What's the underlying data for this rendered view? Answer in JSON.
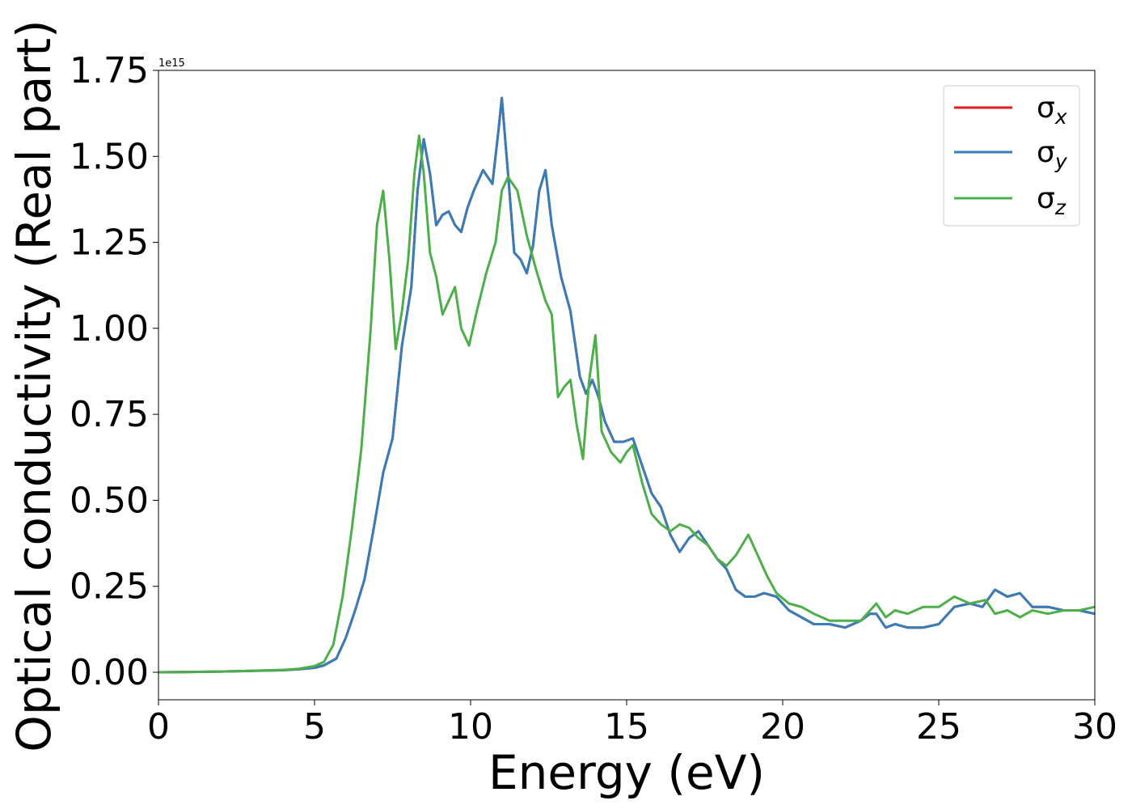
{
  "chart_data": {
    "type": "line",
    "xlabel": "Energy (eV)",
    "ylabel": "Optical conductivity (Real part)",
    "y_multiplier_label": "1e15",
    "xlim": [
      0,
      30
    ],
    "ylim": [
      -0.08,
      1.75
    ],
    "x_ticks": [
      "0",
      "5",
      "10",
      "15",
      "20",
      "25",
      "30"
    ],
    "x_tick_values": [
      0,
      5,
      10,
      15,
      20,
      25,
      30
    ],
    "y_ticks": [
      "0.00",
      "0.25",
      "0.50",
      "0.75",
      "1.00",
      "1.25",
      "1.50",
      "1.75"
    ],
    "y_tick_values": [
      0,
      0.25,
      0.5,
      0.75,
      1.0,
      1.25,
      1.5,
      1.75
    ],
    "legend_position": "top-right",
    "grid": false,
    "series": [
      {
        "name": "σx",
        "legend_base": "σ",
        "legend_sub": "x",
        "color": "#e41a1c",
        "x": [
          0,
          1,
          2,
          3,
          4,
          4.5,
          5,
          5.3,
          5.7,
          6.0,
          6.3,
          6.6,
          6.9,
          7.2,
          7.5,
          7.8,
          8.1,
          8.3,
          8.5,
          8.7,
          8.9,
          9.1,
          9.3,
          9.5,
          9.7,
          9.9,
          10.1,
          10.4,
          10.7,
          10.9,
          11.0,
          11.2,
          11.4,
          11.6,
          11.8,
          12.0,
          12.2,
          12.4,
          12.6,
          12.9,
          13.2,
          13.5,
          13.7,
          13.9,
          14.1,
          14.3,
          14.6,
          14.9,
          15.2,
          15.5,
          15.8,
          16.1,
          16.4,
          16.7,
          17.0,
          17.3,
          17.6,
          17.9,
          18.2,
          18.5,
          18.8,
          19.1,
          19.4,
          19.8,
          20.2,
          20.6,
          21.0,
          21.5,
          22.0,
          22.5,
          22.8,
          23.0,
          23.3,
          23.6,
          24.0,
          24.5,
          25.0,
          25.5,
          26.0,
          26.4,
          26.8,
          27.2,
          27.6,
          28.0,
          28.5,
          29.0,
          29.5,
          30
        ],
        "y": [
          0,
          0.001,
          0.002,
          0.004,
          0.006,
          0.009,
          0.013,
          0.02,
          0.04,
          0.1,
          0.18,
          0.27,
          0.42,
          0.58,
          0.68,
          0.95,
          1.12,
          1.4,
          1.55,
          1.45,
          1.3,
          1.33,
          1.34,
          1.3,
          1.28,
          1.35,
          1.4,
          1.46,
          1.42,
          1.58,
          1.67,
          1.45,
          1.22,
          1.2,
          1.16,
          1.24,
          1.4,
          1.46,
          1.3,
          1.15,
          1.05,
          0.86,
          0.81,
          0.85,
          0.8,
          0.73,
          0.67,
          0.67,
          0.68,
          0.6,
          0.52,
          0.48,
          0.4,
          0.35,
          0.39,
          0.41,
          0.37,
          0.33,
          0.3,
          0.24,
          0.22,
          0.22,
          0.23,
          0.22,
          0.18,
          0.16,
          0.14,
          0.14,
          0.13,
          0.15,
          0.17,
          0.17,
          0.13,
          0.14,
          0.13,
          0.13,
          0.14,
          0.19,
          0.2,
          0.19,
          0.24,
          0.22,
          0.23,
          0.19,
          0.19,
          0.18,
          0.18,
          0.17
        ]
      },
      {
        "name": "σy",
        "legend_base": "σ",
        "legend_sub": "y",
        "color": "#377eb8",
        "x": [
          0,
          1,
          2,
          3,
          4,
          4.5,
          5,
          5.3,
          5.7,
          6.0,
          6.3,
          6.6,
          6.9,
          7.2,
          7.5,
          7.8,
          8.1,
          8.3,
          8.5,
          8.7,
          8.9,
          9.1,
          9.3,
          9.5,
          9.7,
          9.9,
          10.1,
          10.4,
          10.7,
          10.9,
          11.0,
          11.2,
          11.4,
          11.6,
          11.8,
          12.0,
          12.2,
          12.4,
          12.6,
          12.9,
          13.2,
          13.5,
          13.7,
          13.9,
          14.1,
          14.3,
          14.6,
          14.9,
          15.2,
          15.5,
          15.8,
          16.1,
          16.4,
          16.7,
          17.0,
          17.3,
          17.6,
          17.9,
          18.2,
          18.5,
          18.8,
          19.1,
          19.4,
          19.8,
          20.2,
          20.6,
          21.0,
          21.5,
          22.0,
          22.5,
          22.8,
          23.0,
          23.3,
          23.6,
          24.0,
          24.5,
          25.0,
          25.5,
          26.0,
          26.4,
          26.8,
          27.2,
          27.6,
          28.0,
          28.5,
          29.0,
          29.5,
          30
        ],
        "y": [
          0,
          0.001,
          0.002,
          0.004,
          0.006,
          0.009,
          0.013,
          0.02,
          0.04,
          0.1,
          0.18,
          0.27,
          0.42,
          0.58,
          0.68,
          0.95,
          1.12,
          1.4,
          1.55,
          1.45,
          1.3,
          1.33,
          1.34,
          1.3,
          1.28,
          1.35,
          1.4,
          1.46,
          1.42,
          1.58,
          1.67,
          1.45,
          1.22,
          1.2,
          1.16,
          1.24,
          1.4,
          1.46,
          1.3,
          1.15,
          1.05,
          0.86,
          0.81,
          0.85,
          0.8,
          0.73,
          0.67,
          0.67,
          0.68,
          0.6,
          0.52,
          0.48,
          0.4,
          0.35,
          0.39,
          0.41,
          0.37,
          0.33,
          0.3,
          0.24,
          0.22,
          0.22,
          0.23,
          0.22,
          0.18,
          0.16,
          0.14,
          0.14,
          0.13,
          0.15,
          0.17,
          0.17,
          0.13,
          0.14,
          0.13,
          0.13,
          0.14,
          0.19,
          0.2,
          0.19,
          0.24,
          0.22,
          0.23,
          0.19,
          0.19,
          0.18,
          0.18,
          0.17
        ]
      },
      {
        "name": "σz",
        "legend_base": "σ",
        "legend_sub": "z",
        "color": "#4daf4a",
        "x": [
          0,
          1,
          2,
          3,
          4,
          4.5,
          5,
          5.3,
          5.6,
          5.9,
          6.2,
          6.5,
          6.8,
          7.0,
          7.2,
          7.4,
          7.6,
          7.8,
          8.0,
          8.2,
          8.35,
          8.5,
          8.7,
          8.9,
          9.1,
          9.3,
          9.5,
          9.7,
          9.95,
          10.2,
          10.5,
          10.8,
          11.0,
          11.2,
          11.5,
          11.8,
          12.1,
          12.4,
          12.6,
          12.8,
          13.0,
          13.2,
          13.4,
          13.6,
          13.8,
          14.0,
          14.2,
          14.5,
          14.8,
          15.0,
          15.2,
          15.5,
          15.8,
          16.1,
          16.4,
          16.7,
          17.0,
          17.3,
          17.6,
          17.9,
          18.2,
          18.5,
          18.9,
          19.2,
          19.5,
          19.8,
          20.2,
          20.6,
          21.0,
          21.5,
          22.0,
          22.5,
          22.8,
          23.0,
          23.3,
          23.6,
          24.0,
          24.5,
          25.0,
          25.5,
          26.0,
          26.5,
          26.8,
          27.2,
          27.6,
          28.0,
          28.5,
          29.0,
          29.5,
          30
        ],
        "y": [
          0,
          0.001,
          0.002,
          0.004,
          0.007,
          0.01,
          0.018,
          0.03,
          0.08,
          0.22,
          0.42,
          0.65,
          1.0,
          1.3,
          1.4,
          1.2,
          0.94,
          1.05,
          1.2,
          1.45,
          1.56,
          1.45,
          1.22,
          1.15,
          1.04,
          1.08,
          1.12,
          1.0,
          0.95,
          1.05,
          1.16,
          1.25,
          1.4,
          1.44,
          1.4,
          1.27,
          1.17,
          1.08,
          1.04,
          0.8,
          0.83,
          0.85,
          0.72,
          0.62,
          0.85,
          0.98,
          0.7,
          0.64,
          0.61,
          0.64,
          0.66,
          0.55,
          0.46,
          0.43,
          0.41,
          0.43,
          0.42,
          0.39,
          0.37,
          0.33,
          0.31,
          0.34,
          0.4,
          0.34,
          0.28,
          0.23,
          0.2,
          0.19,
          0.17,
          0.15,
          0.15,
          0.15,
          0.18,
          0.2,
          0.16,
          0.18,
          0.17,
          0.19,
          0.19,
          0.22,
          0.2,
          0.21,
          0.17,
          0.18,
          0.16,
          0.18,
          0.17,
          0.18,
          0.18,
          0.19
        ]
      }
    ]
  }
}
